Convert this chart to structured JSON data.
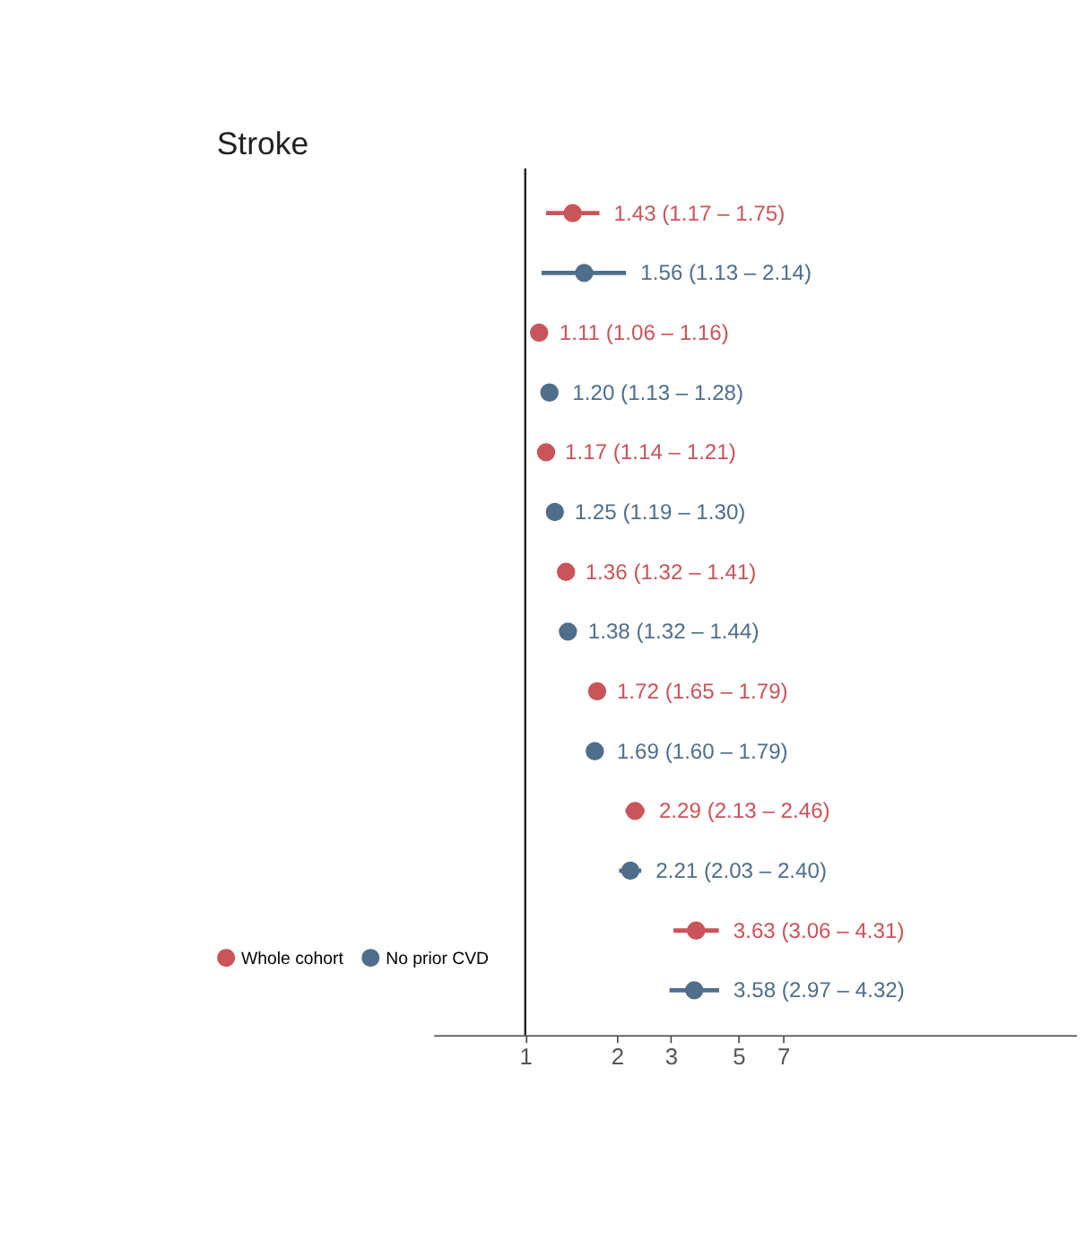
{
  "chart_data": {
    "type": "scatter",
    "title": "Stroke",
    "orientation": "horizontal",
    "categories": [
      null,
      null,
      null,
      null,
      null,
      null,
      null
    ],
    "series": [
      {
        "name": "Whole cohort",
        "color": "#c9545a",
        "values": [
          1.43,
          1.11,
          1.17,
          1.36,
          1.72,
          2.29,
          3.63
        ],
        "errors": [
          [
            1.17,
            1.75
          ],
          [
            1.06,
            1.16
          ],
          [
            1.14,
            1.21
          ],
          [
            1.32,
            1.41
          ],
          [
            1.65,
            1.79
          ],
          [
            2.13,
            2.46
          ],
          [
            3.06,
            4.31
          ]
        ],
        "value_labels": [
          "1.43 (1.17 – 1.75)",
          "1.11 (1.06 – 1.16)",
          "1.17 (1.14 – 1.21)",
          "1.36 (1.32 – 1.41)",
          "1.72 (1.65 – 1.79)",
          "2.29 (2.13 – 2.46)",
          "3.63 (3.06 – 4.31)"
        ]
      },
      {
        "name": "No prior CVD",
        "color": "#4f6e8c",
        "values": [
          1.56,
          1.2,
          1.25,
          1.38,
          1.69,
          2.21,
          3.58
        ],
        "errors": [
          [
            1.13,
            2.14
          ],
          [
            1.13,
            1.28
          ],
          [
            1.19,
            1.3
          ],
          [
            1.32,
            1.44
          ],
          [
            1.6,
            1.79
          ],
          [
            2.03,
            2.4
          ],
          [
            2.97,
            4.32
          ]
        ],
        "value_labels": [
          "1.56 (1.13 – 2.14)",
          "1.20 (1.13 – 1.28)",
          "1.25 (1.19 – 1.30)",
          "1.38 (1.32 – 1.44)",
          "1.69 (1.60 – 1.79)",
          "2.21 (2.03 – 2.40)",
          "3.58 (2.97 – 4.32)"
        ]
      }
    ],
    "log": "x",
    "xlim": [
      0.5,
      64
    ],
    "xticks": [
      1,
      2,
      3,
      5,
      7
    ],
    "ref_lines": [
      {
        "axis": "x",
        "value": 1,
        "color": "#222222"
      }
    ],
    "marker": "circle",
    "grid": false,
    "legend": "left",
    "tick_labels": "x"
  }
}
